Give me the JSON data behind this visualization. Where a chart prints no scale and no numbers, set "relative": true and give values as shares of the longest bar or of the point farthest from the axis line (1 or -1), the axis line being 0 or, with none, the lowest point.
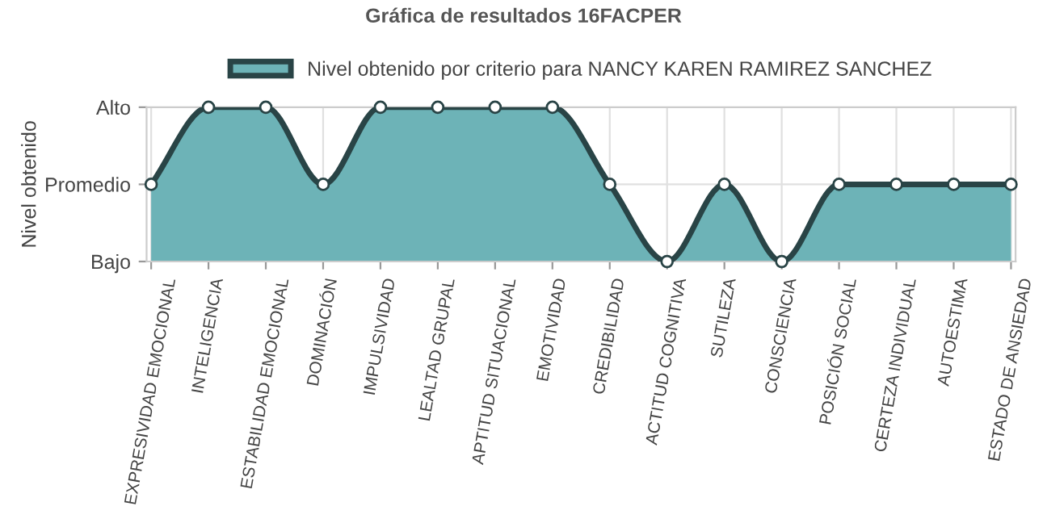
{
  "chart_data": {
    "type": "area",
    "title": "Gráfica de resultados 16FACPER",
    "ylabel": "Nivel obtenido",
    "categories": [
      "EXPRESIVIDAD EMOCIONAL",
      "INTELIGENCIA",
      "ESTABILIDAD EMOCIONAL",
      "DOMINACIÓN",
      "IMPULSIVIDAD",
      "LEALTAD GRUPAL",
      "APTITUD SITUACIONAL",
      "EMOTIVIDAD",
      "CREDIBILIDAD",
      "ACTITUD COGNITIVA",
      "SUTILEZA",
      "CONSCIENCIA",
      "POSICIÓN SOCIAL",
      "CERTEZA INDIVIDUAL",
      "AUTOESTIMA",
      "ESTADO DE ANSIEDAD"
    ],
    "series": [
      {
        "name": "Nivel obtenido por criterio para NANCY KAREN RAMIREZ SANCHEZ",
        "color": "#6db3b7",
        "values": [
          0.5,
          1,
          1,
          0.5,
          1,
          1,
          1,
          1,
          0.5,
          0,
          0.5,
          0,
          0.5,
          0.5,
          0.5,
          0.5
        ]
      }
    ],
    "relative": true,
    "y_categories": [
      "Alto",
      "Promedio",
      "Bajo"
    ],
    "grid": true,
    "legend": "top",
    "marker": "circle"
  }
}
